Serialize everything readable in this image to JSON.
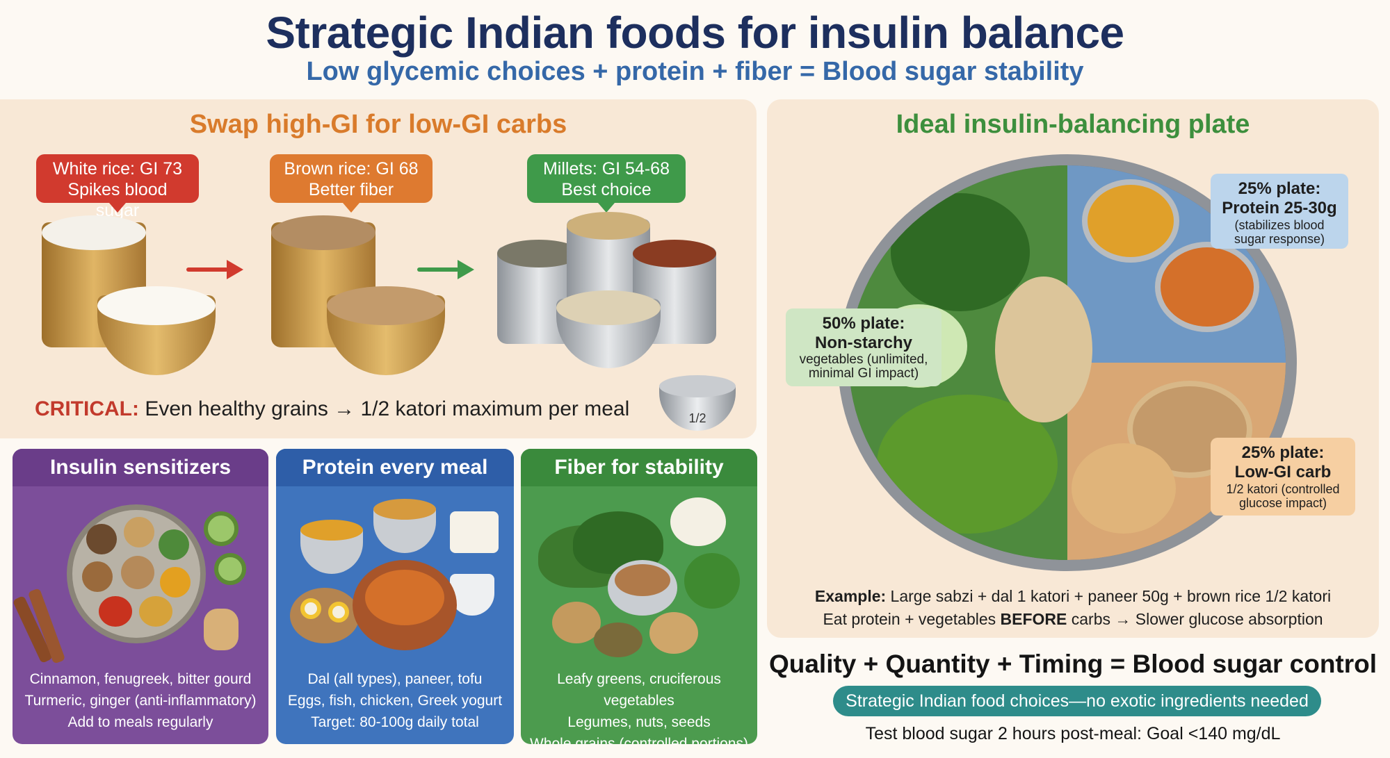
{
  "header": {
    "title": "Strategic Indian foods for insulin balance",
    "subtitle": "Low glycemic choices + protein + fiber = Blood sugar stability"
  },
  "swap": {
    "heading": "Swap high-GI for low-GI carbs",
    "callouts": [
      {
        "line1": "White rice: GI 73",
        "line2": "Spikes blood sugar",
        "color": "#d13a2e"
      },
      {
        "line1": "Brown rice: GI 68",
        "line2": "Better fiber",
        "color": "#de7a30"
      },
      {
        "line1": "Millets: GI 54-68",
        "line2": "Best choice",
        "color": "#3f9a4a"
      }
    ],
    "critical_label": "CRITICAL:",
    "critical_text": " Even healthy grains → 1/2 katori maximum per meal",
    "katori_label": "1/2"
  },
  "cards": [
    {
      "title": "Insulin sensitizers",
      "lines": [
        "Cinnamon, fenugreek, bitter gourd",
        "Turmeric, ginger (anti-inflammatory)",
        "Add to meals regularly"
      ],
      "color": "#7c4e9a"
    },
    {
      "title": "Protein every meal",
      "lines": [
        "Dal (all types), paneer, tofu",
        "Eggs, fish, chicken, Greek yogurt",
        "Target: 80-100g daily total"
      ],
      "color": "#3f74bd"
    },
    {
      "title": "Fiber for stability",
      "lines": [
        "Leafy greens, cruciferous vegetables",
        "Legumes, nuts, seeds",
        "Whole grains (controlled portions)"
      ],
      "color": "#4c9b4e"
    }
  ],
  "plate": {
    "heading": "Ideal insulin-balancing plate",
    "veg_label": {
      "title1": "50% plate:",
      "title2": "Non-starchy",
      "detail1": "vegetables (unlimited,",
      "detail2": "minimal GI impact)"
    },
    "protein_label": {
      "title1": "25% plate:",
      "title2": "Protein 25-30g",
      "detail1": "(stabilizes blood",
      "detail2": "sugar response)"
    },
    "carb_label": {
      "title1": "25% plate:",
      "title2": "Low-GI carb",
      "detail1": "1/2 katori (controlled",
      "detail2": "glucose impact)"
    },
    "example_label": "Example:",
    "example_text": " Large sabzi + dal 1 katori + paneer 50g + brown rice 1/2 katori",
    "order_pre": "Eat protein + vegetables ",
    "order_bold": "BEFORE",
    "order_post": " carbs → Slower glucose absorption"
  },
  "footer": {
    "formula": "Quality + Quantity + Timing = Blood sugar control",
    "pill": "Strategic Indian food choices—no exotic ingredients needed",
    "test": "Test blood sugar 2 hours post-meal: Goal <140 mg/dL"
  }
}
